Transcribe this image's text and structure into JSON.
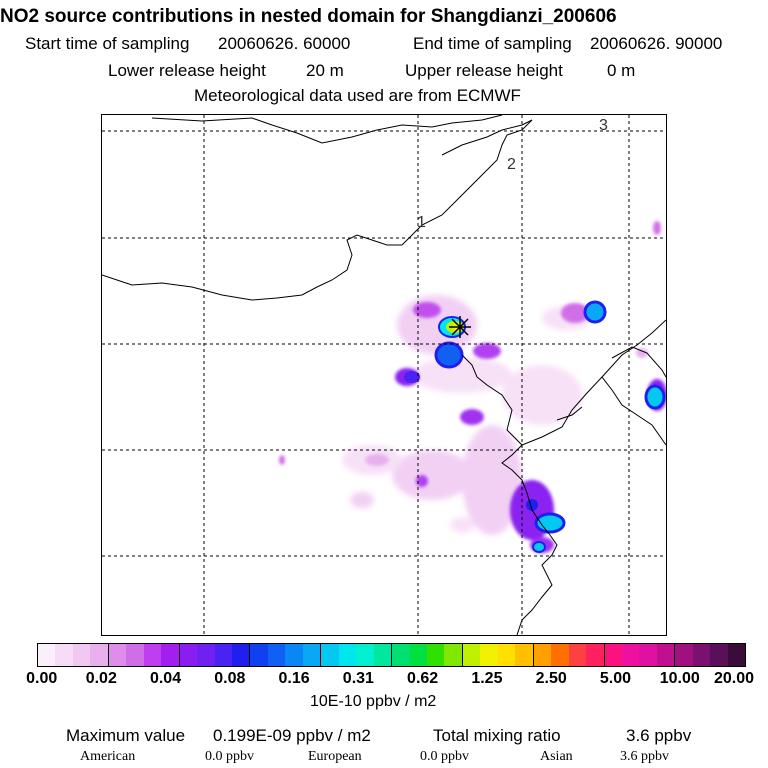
{
  "header": {
    "title": "NO2 source contributions in nested domain for Shangdianzi_200606",
    "start_label": "Start time of sampling",
    "start_value": "20060626. 60000",
    "end_label": "End time of sampling",
    "end_value": "20060626. 90000",
    "lower_label": "Lower release height",
    "lower_value": "20 m",
    "upper_label": "Upper release height",
    "upper_value": "0 m",
    "meteo": "Meteorological data used are from ECMWF"
  },
  "map": {
    "grid_labels": [
      "1",
      "2",
      "3"
    ]
  },
  "colorbar": {
    "ticks": [
      "0.00",
      "0.02",
      "0.04",
      "0.08",
      "0.16",
      "0.31",
      "0.62",
      "1.25",
      "2.50",
      "5.00",
      "10.00",
      "20.00"
    ],
    "units": "10E-10 ppbv / m2",
    "colors": [
      "#fbeffb",
      "#f6dcf6",
      "#f0c8f2",
      "#e8b0ee",
      "#de8eea",
      "#d06ee8",
      "#bf3ff0",
      "#a21fef",
      "#8a1ef2",
      "#7020f0",
      "#4a22f2",
      "#2020ee",
      "#1040f0",
      "#1060f4",
      "#0b86f6",
      "#08a8f4",
      "#05c8f0",
      "#00e6ee",
      "#00f0d0",
      "#00e8a0",
      "#00e070",
      "#00e040",
      "#30e000",
      "#80e800",
      "#c0f000",
      "#f0f000",
      "#ffe000",
      "#ffc000",
      "#ffa000",
      "#ff7000",
      "#ff4040",
      "#ff2060",
      "#ff1080",
      "#f010a0",
      "#e010a0",
      "#c01090",
      "#a01080",
      "#7a1070",
      "#5a1058",
      "#3a0c3a"
    ]
  },
  "footer": {
    "max_label": "Maximum value",
    "max_value": "0.199E-09 ppbv / m2",
    "total_label": "Total mixing ratio",
    "total_value": "3.6 ppbv",
    "regions": [
      {
        "name": "American",
        "value": "0.0 ppbv"
      },
      {
        "name": "European",
        "value": "0.0 ppbv"
      },
      {
        "name": "Asian",
        "value": "3.6 ppbv"
      }
    ]
  }
}
